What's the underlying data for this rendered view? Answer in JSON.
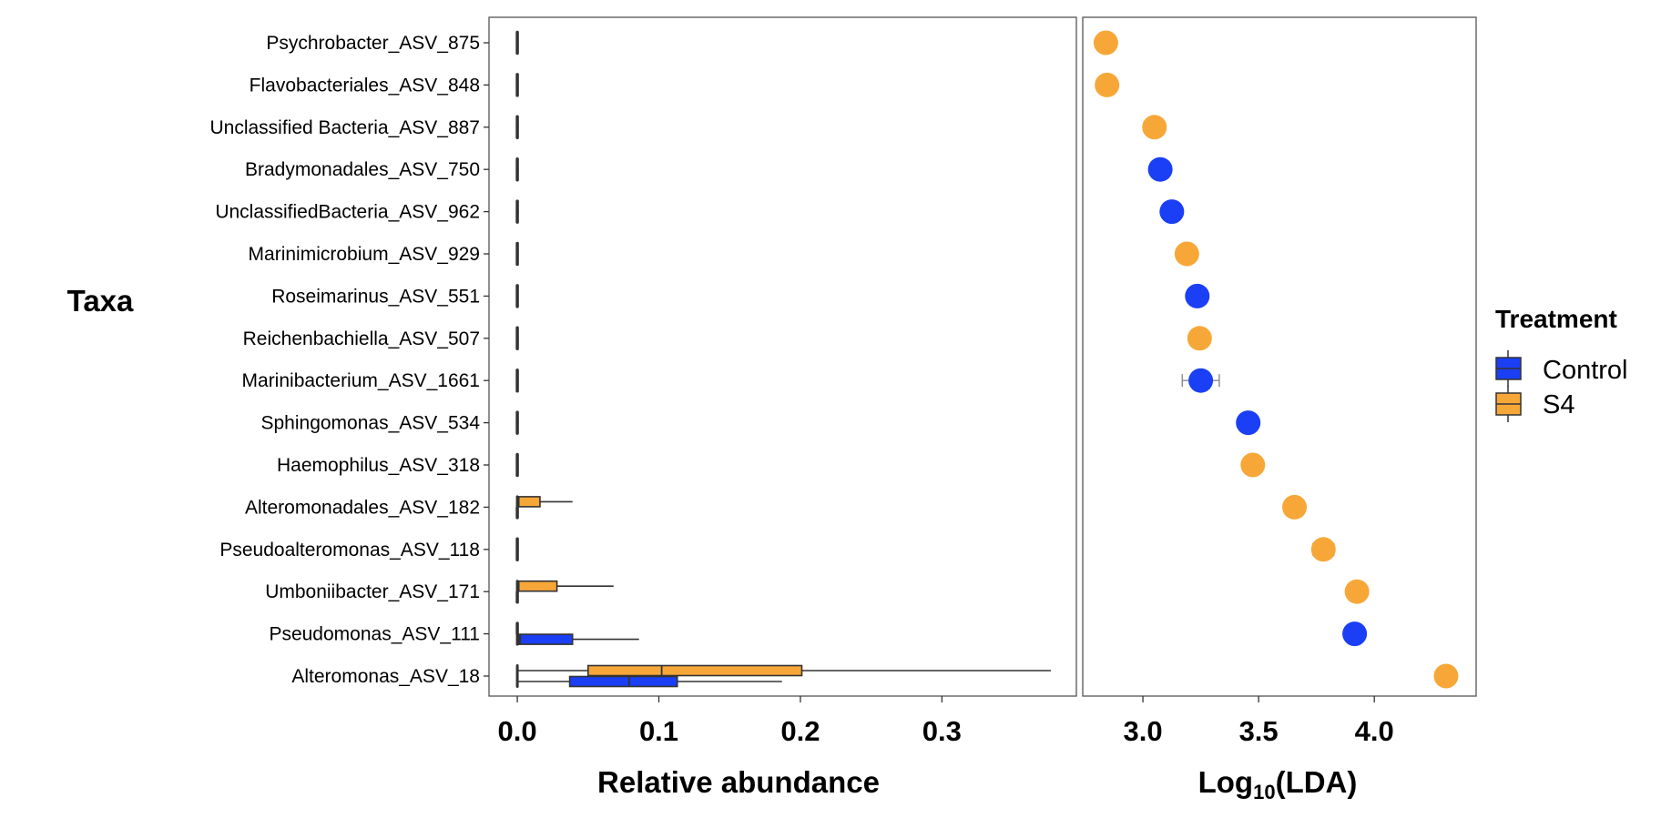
{
  "chart_data": [
    {
      "type": "boxplot",
      "title": "",
      "ylabel": "Taxa",
      "xlabel": "Relative abundance",
      "xlim": [
        -0.02,
        0.395
      ],
      "xticks": [
        "0.0",
        "0.1",
        "0.2",
        "0.3"
      ],
      "xtick_values": [
        0.0,
        0.1,
        0.2,
        0.3
      ],
      "grid": false,
      "categories": [
        "Psychrobacter_ASV_875",
        "Flavobacteriales_ASV_848",
        "Unclassified Bacteria_ASV_887",
        "Bradymonadales_ASV_750",
        "UnclassifiedBacteria_ASV_962",
        "Marinimicrobium_ASV_929",
        "Roseimarinus_ASV_551",
        "Reichenbachiella_ASV_507",
        "Marinibacterium_ASV_1661",
        "Sphingomonas_ASV_534",
        "Haemophilus_ASV_318",
        "Alteromonadales_ASV_182",
        "Pseudoalteromonas_ASV_118",
        "Umboniibacter_ASV_171",
        "Pseudomonas_ASV_111",
        "Alteromonas_ASV_18"
      ],
      "series": [
        {
          "name": "Control",
          "color": "#1a3ff5",
          "boxes": [
            {
              "category": "Psychrobacter_ASV_875",
              "min": 0,
              "q1": 0,
              "median": 0,
              "q3": 0,
              "max": 0
            },
            {
              "category": "Flavobacteriales_ASV_848",
              "min": 0,
              "q1": 0,
              "median": 0,
              "q3": 0,
              "max": 0
            },
            {
              "category": "Unclassified Bacteria_ASV_887",
              "min": 0,
              "q1": 0,
              "median": 0,
              "q3": 0,
              "max": 0
            },
            {
              "category": "Bradymonadales_ASV_750",
              "min": 0,
              "q1": 0,
              "median": 0,
              "q3": 0,
              "max": 0
            },
            {
              "category": "UnclassifiedBacteria_ASV_962",
              "min": 0,
              "q1": 0,
              "median": 0,
              "q3": 0,
              "max": 0
            },
            {
              "category": "Marinimicrobium_ASV_929",
              "min": 0,
              "q1": 0,
              "median": 0,
              "q3": 0,
              "max": 0
            },
            {
              "category": "Roseimarinus_ASV_551",
              "min": 0,
              "q1": 0,
              "median": 0,
              "q3": 0,
              "max": 0
            },
            {
              "category": "Reichenbachiella_ASV_507",
              "min": 0,
              "q1": 0,
              "median": 0,
              "q3": 0,
              "max": 0
            },
            {
              "category": "Marinibacterium_ASV_1661",
              "min": 0,
              "q1": 0,
              "median": 0,
              "q3": 0,
              "max": 0
            },
            {
              "category": "Sphingomonas_ASV_534",
              "min": 0,
              "q1": 0,
              "median": 0,
              "q3": 0,
              "max": 0
            },
            {
              "category": "Haemophilus_ASV_318",
              "min": 0,
              "q1": 0,
              "median": 0,
              "q3": 0,
              "max": 0
            },
            {
              "category": "Alteromonadales_ASV_182",
              "min": 0,
              "q1": 0,
              "median": 0,
              "q3": 0,
              "max": 0
            },
            {
              "category": "Pseudoalteromonas_ASV_118",
              "min": 0,
              "q1": 0,
              "median": 0,
              "q3": 0,
              "max": 0
            },
            {
              "category": "Umboniibacter_ASV_171",
              "min": 0,
              "q1": 0,
              "median": 0,
              "q3": 0,
              "max": 0
            },
            {
              "category": "Pseudomonas_ASV_111",
              "min": 0,
              "q1": 0.001,
              "median": 0.002,
              "q3": 0.039,
              "max": 0.086
            },
            {
              "category": "Alteromonas_ASV_18",
              "min": 0,
              "q1": 0.037,
              "median": 0.079,
              "q3": 0.113,
              "max": 0.187
            }
          ]
        },
        {
          "name": "S4",
          "color": "#f7a738",
          "boxes": [
            {
              "category": "Psychrobacter_ASV_875",
              "min": 0,
              "q1": 0,
              "median": 0,
              "q3": 0,
              "max": 0
            },
            {
              "category": "Flavobacteriales_ASV_848",
              "min": 0,
              "q1": 0,
              "median": 0,
              "q3": 0,
              "max": 0
            },
            {
              "category": "Unclassified Bacteria_ASV_887",
              "min": 0,
              "q1": 0,
              "median": 0,
              "q3": 0,
              "max": 0
            },
            {
              "category": "Bradymonadales_ASV_750",
              "min": 0,
              "q1": 0,
              "median": 0,
              "q3": 0,
              "max": 0
            },
            {
              "category": "UnclassifiedBacteria_ASV_962",
              "min": 0,
              "q1": 0,
              "median": 0,
              "q3": 0,
              "max": 0
            },
            {
              "category": "Marinimicrobium_ASV_929",
              "min": 0,
              "q1": 0,
              "median": 0,
              "q3": 0,
              "max": 0
            },
            {
              "category": "Roseimarinus_ASV_551",
              "min": 0,
              "q1": 0,
              "median": 0,
              "q3": 0,
              "max": 0
            },
            {
              "category": "Reichenbachiella_ASV_507",
              "min": 0,
              "q1": 0,
              "median": 0,
              "q3": 0,
              "max": 0
            },
            {
              "category": "Marinibacterium_ASV_1661",
              "min": 0,
              "q1": 0,
              "median": 0,
              "q3": 0,
              "max": 0
            },
            {
              "category": "Sphingomonas_ASV_534",
              "min": 0,
              "q1": 0,
              "median": 0,
              "q3": 0,
              "max": 0
            },
            {
              "category": "Haemophilus_ASV_318",
              "min": 0,
              "q1": 0,
              "median": 0,
              "q3": 0,
              "max": 0
            },
            {
              "category": "Alteromonadales_ASV_182",
              "min": 0,
              "q1": 0.001,
              "median": 0.001,
              "q3": 0.016,
              "max": 0.039
            },
            {
              "category": "Pseudoalteromonas_ASV_118",
              "min": 0,
              "q1": 0,
              "median": 0,
              "q3": 0,
              "max": 0
            },
            {
              "category": "Umboniibacter_ASV_171",
              "min": 0,
              "q1": 0.001,
              "median": 0.001,
              "q3": 0.028,
              "max": 0.068
            },
            {
              "category": "Pseudomonas_ASV_111",
              "min": 0,
              "q1": 0,
              "median": 0,
              "q3": 0,
              "max": 0
            },
            {
              "category": "Alteromonas_ASV_18",
              "min": 0,
              "q1": 0.05,
              "median": 0.102,
              "q3": 0.201,
              "max": 0.377
            }
          ]
        }
      ]
    },
    {
      "type": "scatter",
      "title": "",
      "xlabel": "Log10(LDA)",
      "xlabel_parts": {
        "main": "Log",
        "sub": "10",
        "rest": "(LDA)"
      },
      "ylabel": "",
      "xlim": [
        2.74,
        4.44
      ],
      "xticks": [
        "3.0",
        "3.5",
        "4.0"
      ],
      "xtick_values": [
        3.0,
        3.5,
        4.0
      ],
      "grid": false,
      "points": [
        {
          "category": "Psychrobacter_ASV_875",
          "x": 2.84,
          "group": "S4"
        },
        {
          "category": "Flavobacteriales_ASV_848",
          "x": 2.845,
          "group": "S4"
        },
        {
          "category": "Unclassified Bacteria_ASV_887",
          "x": 3.05,
          "group": "S4"
        },
        {
          "category": "Bradymonadales_ASV_750",
          "x": 3.075,
          "group": "Control"
        },
        {
          "category": "UnclassifiedBacteria_ASV_962",
          "x": 3.125,
          "group": "Control"
        },
        {
          "category": "Marinimicrobium_ASV_929",
          "x": 3.19,
          "group": "S4"
        },
        {
          "category": "Roseimarinus_ASV_551",
          "x": 3.235,
          "group": "Control"
        },
        {
          "category": "Reichenbachiella_ASV_507",
          "x": 3.245,
          "group": "S4"
        },
        {
          "category": "Marinibacterium_ASV_1661",
          "x": 3.25,
          "group": "Control",
          "err": [
            3.17,
            3.33
          ]
        },
        {
          "category": "Sphingomonas_ASV_534",
          "x": 3.455,
          "group": "Control"
        },
        {
          "category": "Haemophilus_ASV_318",
          "x": 3.475,
          "group": "S4"
        },
        {
          "category": "Alteromonadales_ASV_182",
          "x": 3.655,
          "group": "S4"
        },
        {
          "category": "Pseudoalteromonas_ASV_118",
          "x": 3.78,
          "group": "S4",
          "err": [
            3.735,
            3.825
          ]
        },
        {
          "category": "Umboniibacter_ASV_171",
          "x": 3.925,
          "group": "S4"
        },
        {
          "category": "Pseudomonas_ASV_111",
          "x": 3.915,
          "group": "Control"
        },
        {
          "category": "Alteromonas_ASV_18",
          "x": 4.31,
          "group": "S4"
        }
      ]
    }
  ],
  "legend": {
    "title": "Treatment",
    "placement": "right",
    "items": [
      {
        "label": "Control",
        "color": "#1a3ff5"
      },
      {
        "label": "S4",
        "color": "#f7a738"
      }
    ]
  }
}
